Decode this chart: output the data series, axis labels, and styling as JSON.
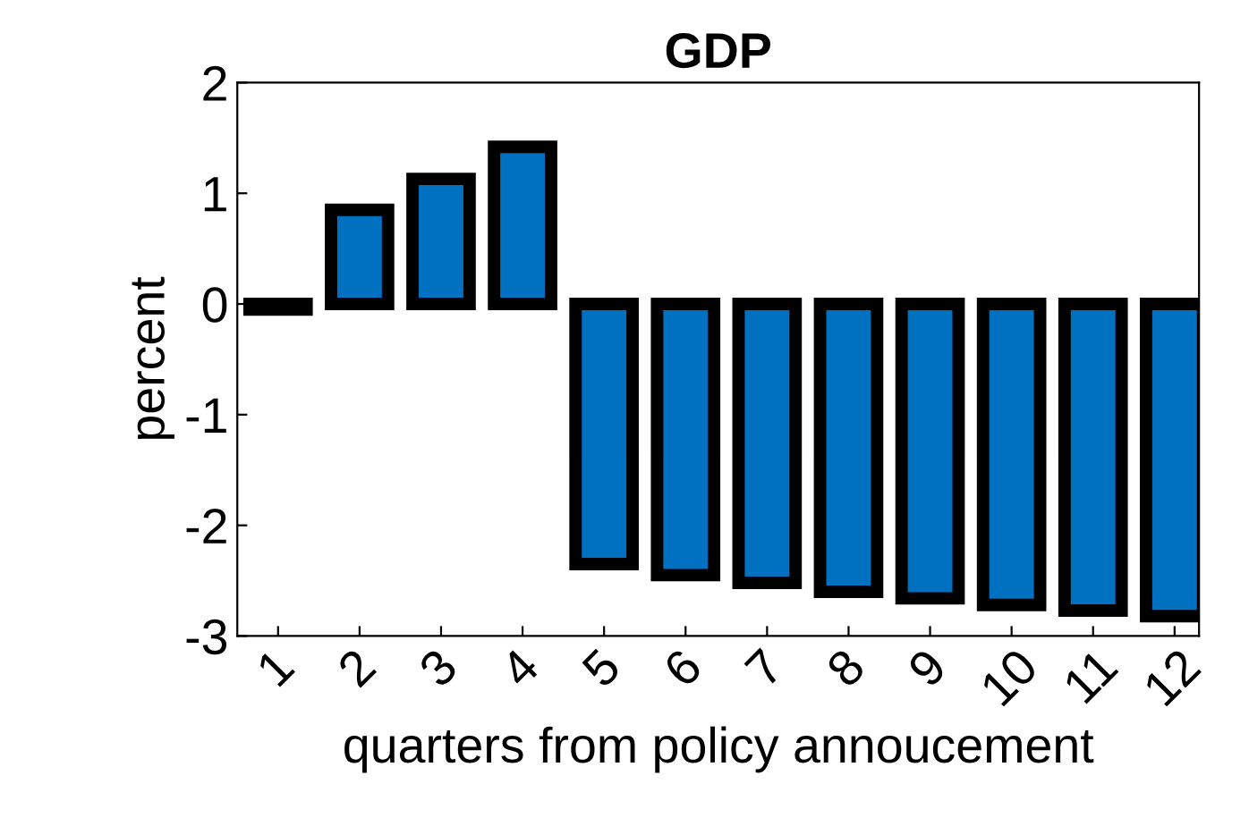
{
  "chart_data": {
    "type": "bar",
    "title": "GDP",
    "xlabel": "quarters from policy annoucement",
    "ylabel": "percent",
    "categories": [
      "1",
      "2",
      "3",
      "4",
      "5",
      "6",
      "7",
      "8",
      "9",
      "10",
      "11",
      "12"
    ],
    "values": [
      -0.05,
      0.85,
      1.13,
      1.42,
      -2.35,
      -2.45,
      -2.52,
      -2.6,
      -2.66,
      -2.72,
      -2.77,
      -2.82
    ],
    "color": "#0070c0",
    "ylim": [
      -3,
      2
    ],
    "yticks": [
      -3,
      -2,
      -1,
      0,
      1,
      2
    ],
    "grid": false,
    "legend": false
  }
}
